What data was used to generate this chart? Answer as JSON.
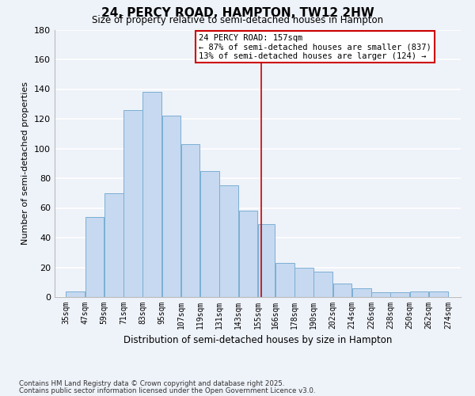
{
  "title": "24, PERCY ROAD, HAMPTON, TW12 2HW",
  "subtitle": "Size of property relative to semi-detached houses in Hampton",
  "xlabel": "Distribution of semi-detached houses by size in Hampton",
  "ylabel": "Number of semi-detached properties",
  "footnote1": "Contains HM Land Registry data © Crown copyright and database right 2025.",
  "footnote2": "Contains public sector information licensed under the Open Government Licence v3.0.",
  "annotation_title": "24 PERCY ROAD: 157sqm",
  "annotation_line1": "← 87% of semi-detached houses are smaller (837)",
  "annotation_line2": "13% of semi-detached houses are larger (124) →",
  "property_size": 157,
  "bar_left_edges": [
    35,
    47,
    59,
    71,
    83,
    95,
    107,
    119,
    131,
    143,
    155,
    166,
    178,
    190,
    202,
    214,
    226,
    238,
    250,
    262
  ],
  "bar_heights": [
    4,
    54,
    70,
    126,
    138,
    122,
    103,
    85,
    75,
    58,
    49,
    23,
    20,
    17,
    9,
    6,
    3,
    3,
    4,
    4
  ],
  "bar_widths": [
    12,
    12,
    12,
    12,
    12,
    12,
    12,
    12,
    12,
    12,
    11,
    12,
    12,
    12,
    12,
    12,
    12,
    12,
    12,
    12
  ],
  "tick_labels": [
    "35sqm",
    "47sqm",
    "59sqm",
    "71sqm",
    "83sqm",
    "95sqm",
    "107sqm",
    "119sqm",
    "131sqm",
    "143sqm",
    "155sqm",
    "166sqm",
    "178sqm",
    "190sqm",
    "202sqm",
    "214sqm",
    "226sqm",
    "238sqm",
    "250sqm",
    "262sqm",
    "274sqm"
  ],
  "tick_positions": [
    35,
    47,
    59,
    71,
    83,
    95,
    107,
    119,
    131,
    143,
    155,
    166,
    178,
    190,
    202,
    214,
    226,
    238,
    250,
    262,
    274
  ],
  "bar_color": "#c6d9f0",
  "bar_edge_color": "#7bafd4",
  "vline_color": "#cc0000",
  "vline_x": 157,
  "annotation_box_color": "#cc0000",
  "bg_color": "#eef2f9",
  "grid_color": "#ffffff",
  "ylim": [
    0,
    180
  ],
  "yticks": [
    0,
    20,
    40,
    60,
    80,
    100,
    120,
    140,
    160,
    180
  ]
}
